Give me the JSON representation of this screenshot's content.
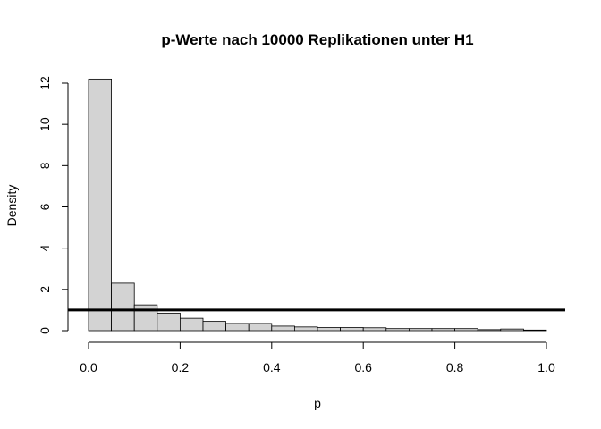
{
  "chart_data": {
    "type": "bar",
    "title": "p-Werte nach 10000 Replikationen unter H1",
    "xlabel": "p",
    "ylabel": "Density",
    "xlim": [
      0,
      1
    ],
    "ylim": [
      0,
      12
    ],
    "x_ticks": [
      "0.0",
      "0.2",
      "0.4",
      "0.6",
      "0.8",
      "1.0"
    ],
    "y_ticks": [
      "0",
      "2",
      "4",
      "6",
      "8",
      "10",
      "12"
    ],
    "bin_width": 0.05,
    "bin_starts": [
      0.0,
      0.05,
      0.1,
      0.15,
      0.2,
      0.25,
      0.3,
      0.35,
      0.4,
      0.45,
      0.5,
      0.55,
      0.6,
      0.65,
      0.7,
      0.75,
      0.8,
      0.85,
      0.9,
      0.95
    ],
    "values": [
      12.2,
      2.3,
      1.25,
      0.85,
      0.6,
      0.45,
      0.35,
      0.35,
      0.22,
      0.18,
      0.15,
      0.15,
      0.14,
      0.1,
      0.1,
      0.1,
      0.1,
      0.05,
      0.08,
      0.03
    ],
    "reference_line": {
      "y": 1
    },
    "grid": false
  }
}
